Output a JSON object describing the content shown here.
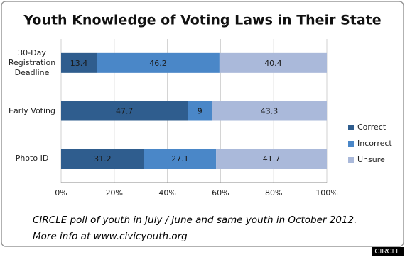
{
  "chart_data": {
    "type": "stacked-bar-horizontal",
    "title": "Youth Knowledge of Voting Laws in Their State",
    "categories": [
      "30-Day Registration Deadline",
      "Early Voting",
      "Photo ID"
    ],
    "series": [
      {
        "name": "Correct",
        "color": "#2f5d8e",
        "values": [
          13.4,
          47.7,
          31.2
        ]
      },
      {
        "name": "Incorrect",
        "color": "#4a87c8",
        "values": [
          46.2,
          9,
          27.1
        ]
      },
      {
        "name": "Unsure",
        "color": "#aab9da",
        "values": [
          40.4,
          43.3,
          41.7
        ]
      }
    ],
    "xlim": [
      0,
      100
    ],
    "xticks": [
      {
        "value": 0,
        "label": "0%"
      },
      {
        "value": 20,
        "label": "20%"
      },
      {
        "value": 40,
        "label": "40%"
      },
      {
        "value": 60,
        "label": "60%"
      },
      {
        "value": 80,
        "label": "80%"
      },
      {
        "value": 100,
        "label": "100%"
      }
    ],
    "grid": true,
    "legend": "right",
    "notes": [
      "CIRCLE poll of youth in July / June and same youth in October 2012.",
      "More info at www.civicyouth.org"
    ],
    "badge": "CIRCLE"
  }
}
